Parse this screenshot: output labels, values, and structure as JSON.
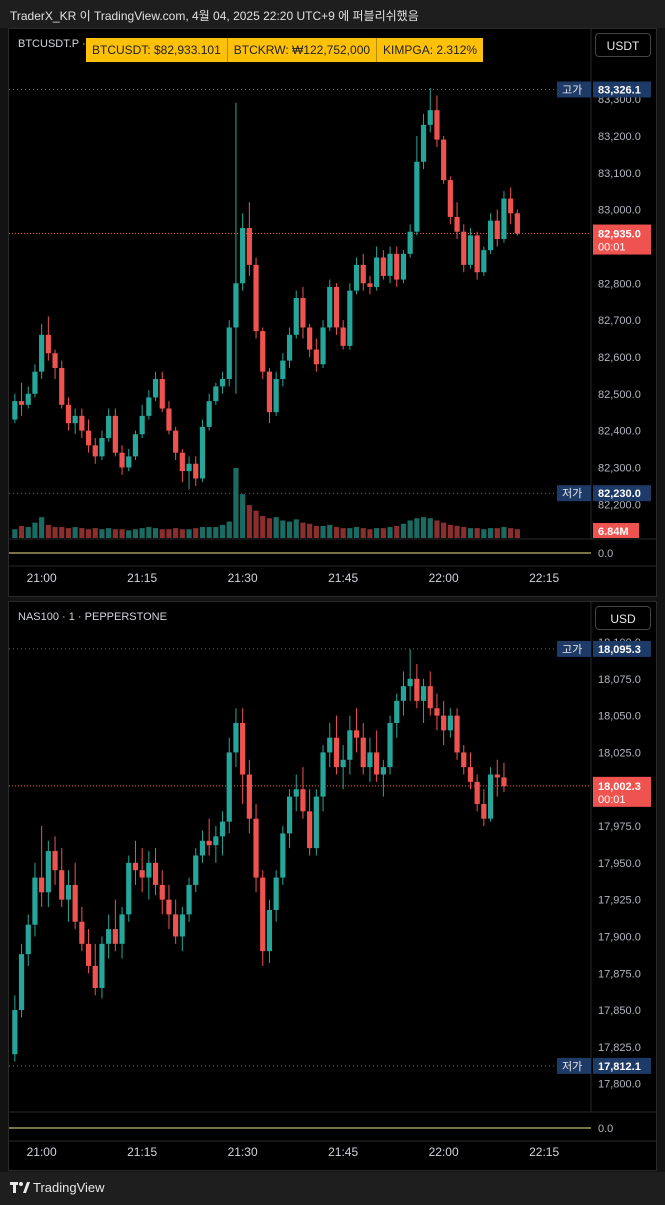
{
  "header": {
    "caption": "TraderX_KR 이 TradingView.com, 4월 04, 2025 22:20 UTC+9 에 퍼블리쉬했음"
  },
  "footer": {
    "brand": "TradingView",
    "logo_icon": "tradingview-logo-icon"
  },
  "colors": {
    "up": "#26a69a",
    "down": "#ef5350",
    "bg": "#000000",
    "highlow": "#1e3a66",
    "ticker_bg": "#ffc107",
    "zero_line": "#f2e68a"
  },
  "ticker": {
    "items": [
      "BTCUSDT: $82,933.101",
      "BTCKRW: ₩122,752,000",
      "KIMPGA: 2.312%"
    ]
  },
  "time_labels": [
    "21:00",
    "21:15",
    "21:30",
    "21:45",
    "22:00",
    "22:15"
  ],
  "panels": [
    {
      "symbol": "BTCUSDT.P · 1 · ",
      "currency": "USDT",
      "high_label": "고가",
      "high_value": "83,326.1",
      "low_label": "저가",
      "low_value": "82,230.0",
      "last_price": "82,935.0",
      "countdown": "00:01",
      "volume_label": "6.84M",
      "indicator_zero": "0.0",
      "price_ticks": [
        "83,300.0",
        "83,200.0",
        "83,100.0",
        "83,000.0",
        "82,900.0",
        "82,800.0",
        "82,700.0",
        "82,600.0",
        "82,500.0",
        "82,400.0",
        "82,300.0",
        "82,200.0"
      ]
    },
    {
      "symbol": "NAS100 · 1 · PEPPERSTONE",
      "currency": "USD",
      "high_label": "고가",
      "high_value": "18,095.3",
      "low_label": "저가",
      "low_value": "17,812.1",
      "last_price": "18,002.3",
      "countdown": "00:01",
      "indicator_zero": "0.0",
      "price_ticks": [
        "18,100.0",
        "18,075.0",
        "18,050.0",
        "18,025.0",
        "17,975.0",
        "17,950.0",
        "17,925.0",
        "17,900.0",
        "17,875.0",
        "17,850.0",
        "17,825.0",
        "17,800.0"
      ]
    }
  ],
  "chart_data": [
    {
      "type": "candlestick",
      "title": "BTCUSDT.P · 1",
      "x_start": "20:56",
      "interval_min": 1,
      "ylim": [
        82160,
        83360
      ],
      "ohlc": [
        [
          82430,
          82500,
          82420,
          82480
        ],
        [
          82480,
          82530,
          82440,
          82470
        ],
        [
          82470,
          82520,
          82460,
          82500
        ],
        [
          82500,
          82580,
          82490,
          82560
        ],
        [
          82560,
          82690,
          82540,
          82660
        ],
        [
          82660,
          82710,
          82590,
          82610
        ],
        [
          82610,
          82620,
          82540,
          82570
        ],
        [
          82570,
          82590,
          82460,
          82470
        ],
        [
          82470,
          82490,
          82400,
          82420
        ],
        [
          82420,
          82460,
          82390,
          82440
        ],
        [
          82440,
          82460,
          82380,
          82400
        ],
        [
          82400,
          82430,
          82340,
          82360
        ],
        [
          82360,
          82380,
          82310,
          82330
        ],
        [
          82330,
          82400,
          82320,
          82380
        ],
        [
          82380,
          82460,
          82370,
          82440
        ],
        [
          82440,
          82460,
          82330,
          82340
        ],
        [
          82340,
          82360,
          82280,
          82300
        ],
        [
          82300,
          82350,
          82290,
          82330
        ],
        [
          82330,
          82400,
          82320,
          82390
        ],
        [
          82390,
          82470,
          82380,
          82440
        ],
        [
          82440,
          82510,
          82430,
          82490
        ],
        [
          82490,
          82560,
          82480,
          82540
        ],
        [
          82540,
          82560,
          82450,
          82460
        ],
        [
          82460,
          82480,
          82390,
          82400
        ],
        [
          82400,
          82410,
          82320,
          82340
        ],
        [
          82340,
          82350,
          82260,
          82290
        ],
        [
          82290,
          82330,
          82240,
          82310
        ],
        [
          82310,
          82330,
          82250,
          82270
        ],
        [
          82270,
          82430,
          82260,
          82410
        ],
        [
          82410,
          82500,
          82400,
          82480
        ],
        [
          82480,
          82530,
          82470,
          82520
        ],
        [
          82520,
          82560,
          82500,
          82540
        ],
        [
          82540,
          82700,
          82520,
          82680
        ],
        [
          82680,
          83290,
          82500,
          82800
        ],
        [
          82800,
          82990,
          82780,
          82950
        ],
        [
          82950,
          83020,
          82820,
          82850
        ],
        [
          82850,
          82870,
          82650,
          82670
        ],
        [
          82670,
          82680,
          82540,
          82560
        ],
        [
          82560,
          82570,
          82420,
          82450
        ],
        [
          82450,
          82560,
          82440,
          82540
        ],
        [
          82540,
          82610,
          82520,
          82590
        ],
        [
          82590,
          82680,
          82570,
          82660
        ],
        [
          82660,
          82780,
          82650,
          82760
        ],
        [
          82760,
          82790,
          82650,
          82680
        ],
        [
          82680,
          82690,
          82600,
          82620
        ],
        [
          82620,
          82650,
          82560,
          82580
        ],
        [
          82580,
          82700,
          82570,
          82680
        ],
        [
          82680,
          82810,
          82670,
          82790
        ],
        [
          82790,
          82800,
          82660,
          82680
        ],
        [
          82680,
          82700,
          82620,
          82630
        ],
        [
          82630,
          82800,
          82620,
          82780
        ],
        [
          82780,
          82870,
          82770,
          82850
        ],
        [
          82850,
          82880,
          82780,
          82800
        ],
        [
          82800,
          82820,
          82770,
          82790
        ],
        [
          82790,
          82900,
          82780,
          82870
        ],
        [
          82870,
          82890,
          82810,
          82820
        ],
        [
          82820,
          82900,
          82800,
          82880
        ],
        [
          82880,
          82900,
          82790,
          82810
        ],
        [
          82810,
          82890,
          82800,
          82880
        ],
        [
          82880,
          82960,
          82870,
          82940
        ],
        [
          82940,
          83200,
          82930,
          83130
        ],
        [
          83130,
          83260,
          83110,
          83230
        ],
        [
          83230,
          83330,
          83210,
          83270
        ],
        [
          83270,
          83310,
          83170,
          83190
        ],
        [
          83190,
          83200,
          83070,
          83080
        ],
        [
          83080,
          83090,
          82960,
          82980
        ],
        [
          82980,
          83020,
          82920,
          82940
        ],
        [
          82940,
          82960,
          82830,
          82850
        ],
        [
          82850,
          82950,
          82840,
          82930
        ],
        [
          82930,
          82940,
          82810,
          82830
        ],
        [
          82830,
          82900,
          82820,
          82890
        ],
        [
          82890,
          82990,
          82880,
          82970
        ],
        [
          82970,
          83000,
          82900,
          82920
        ],
        [
          82920,
          83050,
          82910,
          83030
        ],
        [
          83030,
          83060,
          82960,
          82990
        ],
        [
          82990,
          83000,
          82930,
          82935
        ]
      ],
      "volume": [
        0.8,
        1.1,
        1.0,
        1.4,
        1.9,
        1.2,
        1.0,
        1.0,
        0.9,
        1.0,
        0.9,
        0.8,
        0.9,
        0.8,
        0.9,
        0.8,
        0.8,
        0.7,
        0.8,
        0.9,
        1.0,
        0.9,
        0.8,
        0.8,
        0.9,
        0.8,
        0.8,
        0.9,
        1.0,
        1.0,
        1.0,
        1.2,
        1.5,
        6.84,
        4.0,
        3.0,
        2.5,
        2.0,
        1.8,
        1.9,
        1.6,
        1.5,
        1.7,
        1.4,
        1.3,
        1.1,
        1.1,
        1.2,
        1.0,
        0.9,
        0.9,
        1.0,
        0.9,
        0.8,
        0.9,
        0.9,
        1.0,
        1.1,
        1.3,
        1.6,
        1.8,
        1.9,
        1.8,
        1.6,
        1.4,
        1.2,
        1.1,
        1.0,
        0.9,
        0.9,
        0.8,
        0.9,
        0.9,
        1.0,
        0.9,
        0.8
      ]
    },
    {
      "type": "candlestick",
      "title": "NAS100 · 1 · PEPPERSTONE",
      "x_start": "20:56",
      "interval_min": 1,
      "ylim": [
        17793,
        18100
      ],
      "ohlc": [
        [
          17820,
          17860,
          17815,
          17850
        ],
        [
          17850,
          17895,
          17845,
          17888
        ],
        [
          17888,
          17915,
          17880,
          17908
        ],
        [
          17908,
          17950,
          17900,
          17940
        ],
        [
          17940,
          17975,
          17920,
          17930
        ],
        [
          17930,
          17965,
          17920,
          17958
        ],
        [
          17958,
          17968,
          17935,
          17945
        ],
        [
          17945,
          17960,
          17920,
          17925
        ],
        [
          17925,
          17945,
          17910,
          17935
        ],
        [
          17935,
          17950,
          17905,
          17910
        ],
        [
          17910,
          17920,
          17890,
          17895
        ],
        [
          17895,
          17905,
          17875,
          17880
        ],
        [
          17880,
          17895,
          17860,
          17865
        ],
        [
          17865,
          17900,
          17858,
          17895
        ],
        [
          17895,
          17915,
          17885,
          17905
        ],
        [
          17905,
          17925,
          17890,
          17895
        ],
        [
          17895,
          17920,
          17885,
          17915
        ],
        [
          17915,
          17955,
          17910,
          17950
        ],
        [
          17950,
          17965,
          17935,
          17945
        ],
        [
          17945,
          17960,
          17930,
          17940
        ],
        [
          17940,
          17958,
          17925,
          17950
        ],
        [
          17950,
          17960,
          17928,
          17935
        ],
        [
          17935,
          17945,
          17915,
          17925
        ],
        [
          17925,
          17935,
          17905,
          17915
        ],
        [
          17915,
          17925,
          17895,
          17900
        ],
        [
          17900,
          17920,
          17890,
          17915
        ],
        [
          17915,
          17940,
          17910,
          17935
        ],
        [
          17935,
          17960,
          17930,
          17955
        ],
        [
          17955,
          17972,
          17950,
          17965
        ],
        [
          17965,
          17980,
          17955,
          17962
        ],
        [
          17962,
          17975,
          17950,
          17968
        ],
        [
          17968,
          17985,
          17955,
          17978
        ],
        [
          17978,
          18035,
          17970,
          18025
        ],
        [
          18025,
          18055,
          18015,
          18045
        ],
        [
          18045,
          18055,
          17990,
          18010
        ],
        [
          18010,
          18020,
          17970,
          17980
        ],
        [
          17980,
          17990,
          17930,
          17940
        ],
        [
          17940,
          17945,
          17880,
          17890
        ],
        [
          17890,
          17925,
          17882,
          17918
        ],
        [
          17918,
          17945,
          17910,
          17940
        ],
        [
          17940,
          17975,
          17935,
          17970
        ],
        [
          17970,
          18000,
          17960,
          17995
        ],
        [
          17995,
          18010,
          17985,
          18000
        ],
        [
          18000,
          18015,
          17980,
          17985
        ],
        [
          17985,
          18000,
          17955,
          17960
        ],
        [
          17960,
          18000,
          17955,
          17995
        ],
        [
          17995,
          18030,
          17985,
          18025
        ],
        [
          18025,
          18045,
          18015,
          18035
        ],
        [
          18035,
          18050,
          18010,
          18015
        ],
        [
          18015,
          18030,
          18000,
          18020
        ],
        [
          18020,
          18050,
          18010,
          18040
        ],
        [
          18040,
          18055,
          18025,
          18035
        ],
        [
          18035,
          18045,
          18010,
          18015
        ],
        [
          18015,
          18035,
          18005,
          18025
        ],
        [
          18025,
          18040,
          18005,
          18010
        ],
        [
          18010,
          18020,
          17995,
          18015
        ],
        [
          18015,
          18050,
          18010,
          18045
        ],
        [
          18045,
          18065,
          18035,
          18060
        ],
        [
          18060,
          18080,
          18050,
          18070
        ],
        [
          18070,
          18095,
          18060,
          18075
        ],
        [
          18075,
          18085,
          18055,
          18060
        ],
        [
          18060,
          18075,
          18045,
          18070
        ],
        [
          18070,
          18080,
          18050,
          18055
        ],
        [
          18055,
          18065,
          18040,
          18050
        ],
        [
          18050,
          18060,
          18030,
          18040
        ],
        [
          18040,
          18055,
          18035,
          18050
        ],
        [
          18050,
          18055,
          18020,
          18025
        ],
        [
          18025,
          18030,
          18010,
          18015
        ],
        [
          18015,
          18025,
          18000,
          18005
        ],
        [
          18005,
          18010,
          17985,
          17990
        ],
        [
          17990,
          18000,
          17975,
          17980
        ],
        [
          17980,
          18015,
          17978,
          18010
        ],
        [
          18010,
          18020,
          17995,
          18008
        ],
        [
          18008,
          18018,
          17998,
          18002
        ]
      ]
    }
  ]
}
